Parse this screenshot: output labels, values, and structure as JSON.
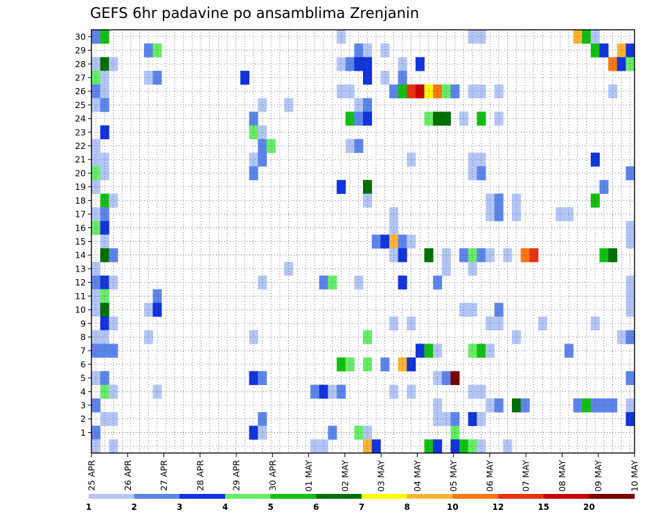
{
  "chart_data": {
    "type": "heatmap",
    "title": "GEFS 6hr padavine po ansamblima Zrenjanin",
    "x_tick_labels": [
      "25 APR",
      "26 APR",
      "27 APR",
      "28 APR",
      "29 APR",
      "30 APR",
      "01 MAY",
      "02 MAY",
      "03 MAY",
      "04 MAY",
      "05 MAY",
      "06 MAY",
      "07 MAY",
      "08 MAY",
      "09 MAY",
      "10 MAY"
    ],
    "y_tick_labels": [
      "1",
      "2",
      "3",
      "4",
      "5",
      "6",
      "7",
      "8",
      "9",
      "10",
      "11",
      "12",
      "13",
      "14",
      "15",
      "16",
      "17",
      "18",
      "19",
      "20",
      "21",
      "22",
      "23",
      "24",
      "25",
      "26",
      "27",
      "28",
      "29",
      "30"
    ],
    "n_steps": 62,
    "members": 31,
    "grid": true,
    "levels": [
      1,
      2,
      3,
      4,
      5,
      6,
      7,
      8,
      10,
      12,
      15,
      20
    ],
    "level_labels": [
      "1",
      "2",
      "3",
      "4",
      "5",
      "6",
      "7",
      "8",
      "10",
      "12",
      "15",
      "20"
    ],
    "colors": [
      "#b3c6f7",
      "#5c85ec",
      "#1133dd",
      "#66ee66",
      "#11c011",
      "#006f00",
      "#ffff00",
      "#ffb433",
      "#ff7711",
      "#e83311",
      "#c80000",
      "#7a0000"
    ],
    "cells": [
      [
        0,
        30,
        2
      ],
      [
        1,
        30,
        5
      ],
      [
        28,
        30,
        1
      ],
      [
        43,
        30,
        1
      ],
      [
        44,
        30,
        1
      ],
      [
        55,
        30,
        8
      ],
      [
        56,
        30,
        5
      ],
      [
        57,
        30,
        1
      ],
      [
        6,
        29,
        2
      ],
      [
        7,
        29,
        4
      ],
      [
        30,
        29,
        2
      ],
      [
        31,
        29,
        1
      ],
      [
        33,
        29,
        1
      ],
      [
        57,
        29,
        5
      ],
      [
        58,
        29,
        3
      ],
      [
        60,
        29,
        8
      ],
      [
        61,
        29,
        3
      ],
      [
        0,
        28,
        1
      ],
      [
        1,
        28,
        6
      ],
      [
        2,
        28,
        1
      ],
      [
        28,
        28,
        1
      ],
      [
        29,
        28,
        2
      ],
      [
        30,
        28,
        3
      ],
      [
        31,
        28,
        3
      ],
      [
        35,
        28,
        1
      ],
      [
        37,
        28,
        3
      ],
      [
        59,
        28,
        9
      ],
      [
        60,
        28,
        3
      ],
      [
        61,
        28,
        4
      ],
      [
        0,
        27,
        4
      ],
      [
        1,
        27,
        1
      ],
      [
        6,
        27,
        1
      ],
      [
        7,
        27,
        2
      ],
      [
        17,
        27,
        3
      ],
      [
        31,
        27,
        3
      ],
      [
        33,
        27,
        1
      ],
      [
        35,
        27,
        2
      ],
      [
        0,
        26,
        2
      ],
      [
        1,
        26,
        1
      ],
      [
        28,
        26,
        1
      ],
      [
        29,
        26,
        1
      ],
      [
        34,
        26,
        2
      ],
      [
        35,
        26,
        5
      ],
      [
        36,
        26,
        10
      ],
      [
        37,
        26,
        11
      ],
      [
        38,
        26,
        7
      ],
      [
        39,
        26,
        9
      ],
      [
        40,
        26,
        4
      ],
      [
        41,
        26,
        2
      ],
      [
        43,
        26,
        1
      ],
      [
        44,
        26,
        1
      ],
      [
        46,
        26,
        1
      ],
      [
        59,
        26,
        1
      ],
      [
        0,
        25,
        1
      ],
      [
        1,
        25,
        2
      ],
      [
        19,
        25,
        1
      ],
      [
        22,
        25,
        1
      ],
      [
        30,
        25,
        1
      ],
      [
        31,
        25,
        2
      ],
      [
        18,
        24,
        2
      ],
      [
        29,
        24,
        5
      ],
      [
        30,
        24,
        2
      ],
      [
        31,
        24,
        3
      ],
      [
        38,
        24,
        4
      ],
      [
        39,
        24,
        6
      ],
      [
        40,
        24,
        6
      ],
      [
        42,
        24,
        1
      ],
      [
        44,
        24,
        5
      ],
      [
        46,
        24,
        1
      ],
      [
        1,
        23,
        3
      ],
      [
        18,
        23,
        4
      ],
      [
        19,
        23,
        1
      ],
      [
        0,
        22,
        1
      ],
      [
        19,
        22,
        2
      ],
      [
        20,
        22,
        4
      ],
      [
        29,
        22,
        1
      ],
      [
        30,
        22,
        2
      ],
      [
        0,
        21,
        1
      ],
      [
        1,
        21,
        1
      ],
      [
        18,
        21,
        1
      ],
      [
        19,
        21,
        2
      ],
      [
        36,
        21,
        1
      ],
      [
        43,
        21,
        1
      ],
      [
        44,
        21,
        1
      ],
      [
        57,
        21,
        3
      ],
      [
        0,
        20,
        4
      ],
      [
        1,
        20,
        1
      ],
      [
        18,
        20,
        2
      ],
      [
        43,
        20,
        1
      ],
      [
        44,
        20,
        2
      ],
      [
        61,
        20,
        2
      ],
      [
        0,
        19,
        1
      ],
      [
        28,
        19,
        3
      ],
      [
        31,
        19,
        6
      ],
      [
        58,
        19,
        2
      ],
      [
        1,
        18,
        5
      ],
      [
        2,
        18,
        1
      ],
      [
        31,
        18,
        1
      ],
      [
        45,
        18,
        1
      ],
      [
        46,
        18,
        2
      ],
      [
        48,
        18,
        1
      ],
      [
        57,
        18,
        5
      ],
      [
        0,
        17,
        1
      ],
      [
        1,
        17,
        2
      ],
      [
        34,
        17,
        1
      ],
      [
        45,
        17,
        1
      ],
      [
        46,
        17,
        2
      ],
      [
        48,
        17,
        1
      ],
      [
        53,
        17,
        1
      ],
      [
        54,
        17,
        1
      ],
      [
        0,
        16,
        4
      ],
      [
        1,
        16,
        3
      ],
      [
        34,
        16,
        1
      ],
      [
        61,
        16,
        1
      ],
      [
        1,
        15,
        1
      ],
      [
        32,
        15,
        2
      ],
      [
        33,
        15,
        3
      ],
      [
        34,
        15,
        8
      ],
      [
        35,
        15,
        2
      ],
      [
        36,
        15,
        1
      ],
      [
        61,
        15,
        1
      ],
      [
        1,
        14,
        6
      ],
      [
        2,
        14,
        2
      ],
      [
        34,
        14,
        1
      ],
      [
        35,
        14,
        3
      ],
      [
        38,
        14,
        6
      ],
      [
        40,
        14,
        1
      ],
      [
        42,
        14,
        2
      ],
      [
        43,
        14,
        4
      ],
      [
        44,
        14,
        2
      ],
      [
        45,
        14,
        1
      ],
      [
        47,
        14,
        1
      ],
      [
        49,
        14,
        9
      ],
      [
        50,
        14,
        10
      ],
      [
        58,
        14,
        5
      ],
      [
        59,
        14,
        6
      ],
      [
        0,
        13,
        1
      ],
      [
        22,
        13,
        1
      ],
      [
        40,
        13,
        1
      ],
      [
        43,
        13,
        1
      ],
      [
        0,
        12,
        2
      ],
      [
        1,
        12,
        3
      ],
      [
        2,
        12,
        1
      ],
      [
        19,
        12,
        1
      ],
      [
        26,
        12,
        2
      ],
      [
        27,
        12,
        4
      ],
      [
        30,
        12,
        1
      ],
      [
        35,
        12,
        3
      ],
      [
        39,
        12,
        2
      ],
      [
        61,
        12,
        1
      ],
      [
        0,
        11,
        1
      ],
      [
        1,
        11,
        4
      ],
      [
        7,
        11,
        2
      ],
      [
        61,
        11,
        1
      ],
      [
        0,
        10,
        1
      ],
      [
        1,
        10,
        6
      ],
      [
        6,
        10,
        1
      ],
      [
        7,
        10,
        3
      ],
      [
        42,
        10,
        1
      ],
      [
        43,
        10,
        1
      ],
      [
        46,
        10,
        2
      ],
      [
        61,
        10,
        1
      ],
      [
        1,
        9,
        3
      ],
      [
        2,
        9,
        1
      ],
      [
        34,
        9,
        1
      ],
      [
        36,
        9,
        1
      ],
      [
        45,
        9,
        1
      ],
      [
        46,
        9,
        1
      ],
      [
        51,
        9,
        1
      ],
      [
        57,
        9,
        1
      ],
      [
        0,
        8,
        1
      ],
      [
        1,
        8,
        1
      ],
      [
        6,
        8,
        1
      ],
      [
        18,
        8,
        1
      ],
      [
        31,
        8,
        4
      ],
      [
        48,
        8,
        1
      ],
      [
        60,
        8,
        1
      ],
      [
        61,
        8,
        2
      ],
      [
        0,
        7,
        2
      ],
      [
        1,
        7,
        2
      ],
      [
        2,
        7,
        2
      ],
      [
        37,
        7,
        3
      ],
      [
        38,
        7,
        5
      ],
      [
        39,
        7,
        1
      ],
      [
        43,
        7,
        4
      ],
      [
        44,
        7,
        5
      ],
      [
        45,
        7,
        1
      ],
      [
        54,
        7,
        2
      ],
      [
        28,
        6,
        5
      ],
      [
        29,
        6,
        4
      ],
      [
        31,
        6,
        4
      ],
      [
        33,
        6,
        2
      ],
      [
        35,
        6,
        8
      ],
      [
        36,
        6,
        3
      ],
      [
        0,
        5,
        1
      ],
      [
        1,
        5,
        2
      ],
      [
        18,
        5,
        3
      ],
      [
        19,
        5,
        2
      ],
      [
        39,
        5,
        1
      ],
      [
        40,
        5,
        2
      ],
      [
        41,
        5,
        12
      ],
      [
        61,
        5,
        2
      ],
      [
        1,
        4,
        4
      ],
      [
        2,
        4,
        1
      ],
      [
        7,
        4,
        1
      ],
      [
        25,
        4,
        2
      ],
      [
        26,
        4,
        3
      ],
      [
        27,
        4,
        1
      ],
      [
        28,
        4,
        2
      ],
      [
        34,
        4,
        1
      ],
      [
        36,
        4,
        1
      ],
      [
        43,
        4,
        1
      ],
      [
        44,
        4,
        1
      ],
      [
        0,
        3,
        2
      ],
      [
        39,
        3,
        1
      ],
      [
        45,
        3,
        1
      ],
      [
        46,
        3,
        2
      ],
      [
        48,
        3,
        6
      ],
      [
        49,
        3,
        2
      ],
      [
        55,
        3,
        2
      ],
      [
        56,
        3,
        5
      ],
      [
        57,
        3,
        2
      ],
      [
        58,
        3,
        2
      ],
      [
        59,
        3,
        2
      ],
      [
        61,
        3,
        1
      ],
      [
        1,
        2,
        1
      ],
      [
        2,
        2,
        1
      ],
      [
        19,
        2,
        2
      ],
      [
        39,
        2,
        1
      ],
      [
        40,
        2,
        1
      ],
      [
        41,
        2,
        2
      ],
      [
        43,
        2,
        3
      ],
      [
        44,
        2,
        1
      ],
      [
        61,
        2,
        3
      ],
      [
        0,
        1,
        2
      ],
      [
        18,
        1,
        3
      ],
      [
        19,
        1,
        1
      ],
      [
        27,
        1,
        2
      ],
      [
        30,
        1,
        4
      ],
      [
        31,
        1,
        1
      ],
      [
        41,
        1,
        4
      ],
      [
        0,
        0,
        1
      ],
      [
        2,
        0,
        1
      ],
      [
        25,
        0,
        1
      ],
      [
        26,
        0,
        1
      ],
      [
        31,
        0,
        8
      ],
      [
        32,
        0,
        3
      ],
      [
        38,
        0,
        5
      ],
      [
        39,
        0,
        3
      ],
      [
        41,
        0,
        3
      ],
      [
        42,
        0,
        5
      ],
      [
        43,
        0,
        4
      ],
      [
        44,
        0,
        1
      ],
      [
        47,
        0,
        1
      ]
    ]
  }
}
